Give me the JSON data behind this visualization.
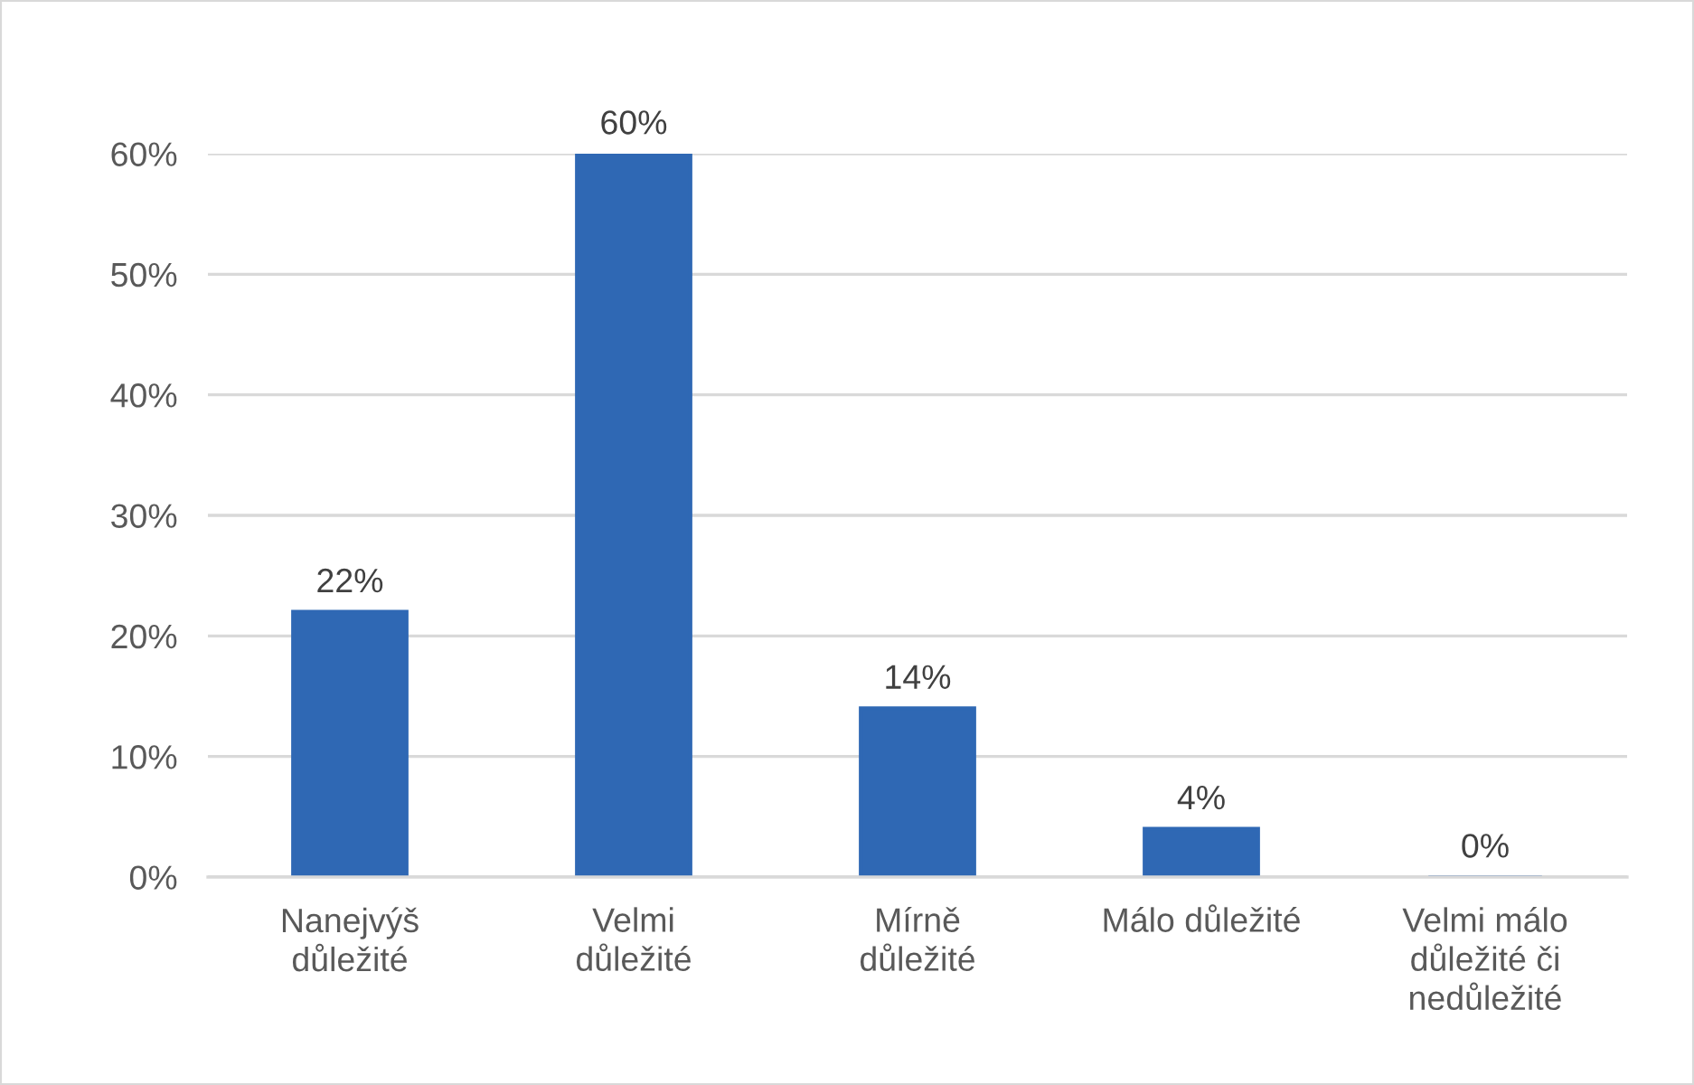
{
  "chart_data": {
    "type": "bar",
    "categories": [
      "Nanejvýš\ndůležité",
      "Velmi\ndůležité",
      "Mírně\ndůležité",
      "Málo důležité",
      "Velmi málo\ndůležité či\nnedůležité"
    ],
    "values": [
      22,
      60,
      14,
      4,
      0
    ],
    "color": "#2f68b4",
    "value_labels": [
      "22%",
      "60%",
      "14%",
      "4%",
      "0%"
    ],
    "ylim": [
      0,
      60
    ],
    "yticks": [
      {
        "value": 0,
        "label": "0%"
      },
      {
        "value": 10,
        "label": "10%"
      },
      {
        "value": 20,
        "label": "20%"
      },
      {
        "value": 30,
        "label": "30%"
      },
      {
        "value": 40,
        "label": "40%"
      },
      {
        "value": 50,
        "label": "50%"
      },
      {
        "value": 60,
        "label": "60%"
      }
    ],
    "grid": "y",
    "legend": false
  }
}
